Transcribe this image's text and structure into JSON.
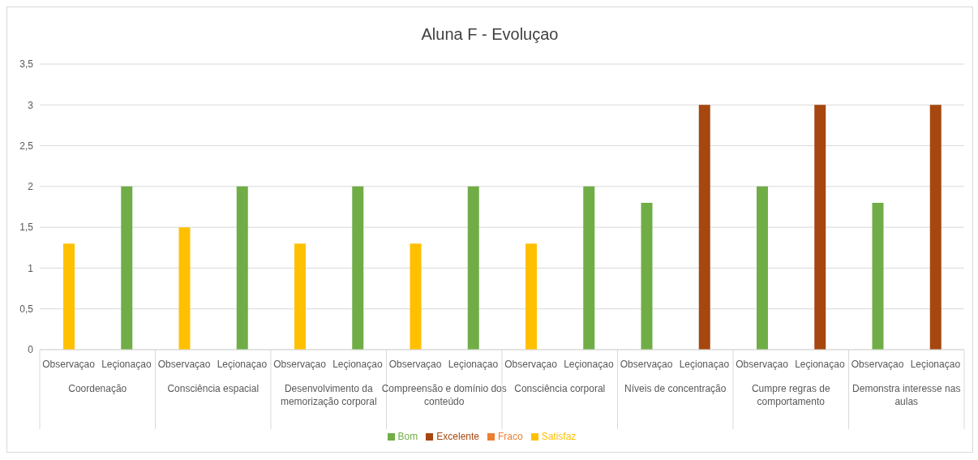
{
  "chart_data": {
    "type": "bar",
    "title": "Aluna F - Evoluçao",
    "stacked": true,
    "categories": [
      "Observaçao",
      "Leçionaçao",
      "Observaçao",
      "Leçionaçao",
      "Observaçao",
      "Leçionaçao",
      "Observaçao",
      "Leçionaçao",
      "Observaçao",
      "Leçionaçao",
      "Observaçao",
      "Leçionaçao",
      "Observaçao",
      "Leçionaçao",
      "Observaçao",
      "Leçionaçao"
    ],
    "annotations": [
      "Coordenação",
      "Consciência espacial",
      "Desenvolvimento da memorização corporal",
      "Compreensão e domínio dos conteúdo",
      "Consciência corporal",
      "Níveis de concentração",
      "Cumpre regras de comportamento",
      "Demonstra interesse nas aulas"
    ],
    "series": [
      {
        "name": "Fraco",
        "color": "#ed7d31",
        "values": [
          null,
          null,
          null,
          null,
          null,
          null,
          null,
          null,
          null,
          null,
          null,
          null,
          null,
          null,
          null,
          null
        ]
      },
      {
        "name": "Satisfaz",
        "color": "#ffc000",
        "values": [
          1.3,
          null,
          1.5,
          null,
          1.3,
          null,
          1.3,
          null,
          1.3,
          null,
          null,
          null,
          null,
          null,
          null,
          null
        ]
      },
      {
        "name": "Bom",
        "color": "#70ad47",
        "values": [
          null,
          2,
          null,
          2,
          null,
          2,
          null,
          2,
          null,
          2,
          1.8,
          null,
          2,
          null,
          1.8,
          null
        ]
      },
      {
        "name": "Excelente",
        "color": "#a5470f",
        "values": [
          null,
          null,
          null,
          null,
          null,
          null,
          null,
          null,
          null,
          null,
          null,
          3,
          null,
          3,
          null,
          3
        ]
      }
    ],
    "ylim": [
      0,
      3.5
    ],
    "yticks": [
      0,
      {
        "value": 0.5,
        "label": "0,5"
      },
      1,
      {
        "value": 1.5,
        "label": "1,5"
      },
      2,
      {
        "value": 2.5,
        "label": "2,5"
      },
      3,
      {
        "value": 3.5,
        "label": "3,5"
      }
    ],
    "grid": "y",
    "legend": "bottom"
  }
}
